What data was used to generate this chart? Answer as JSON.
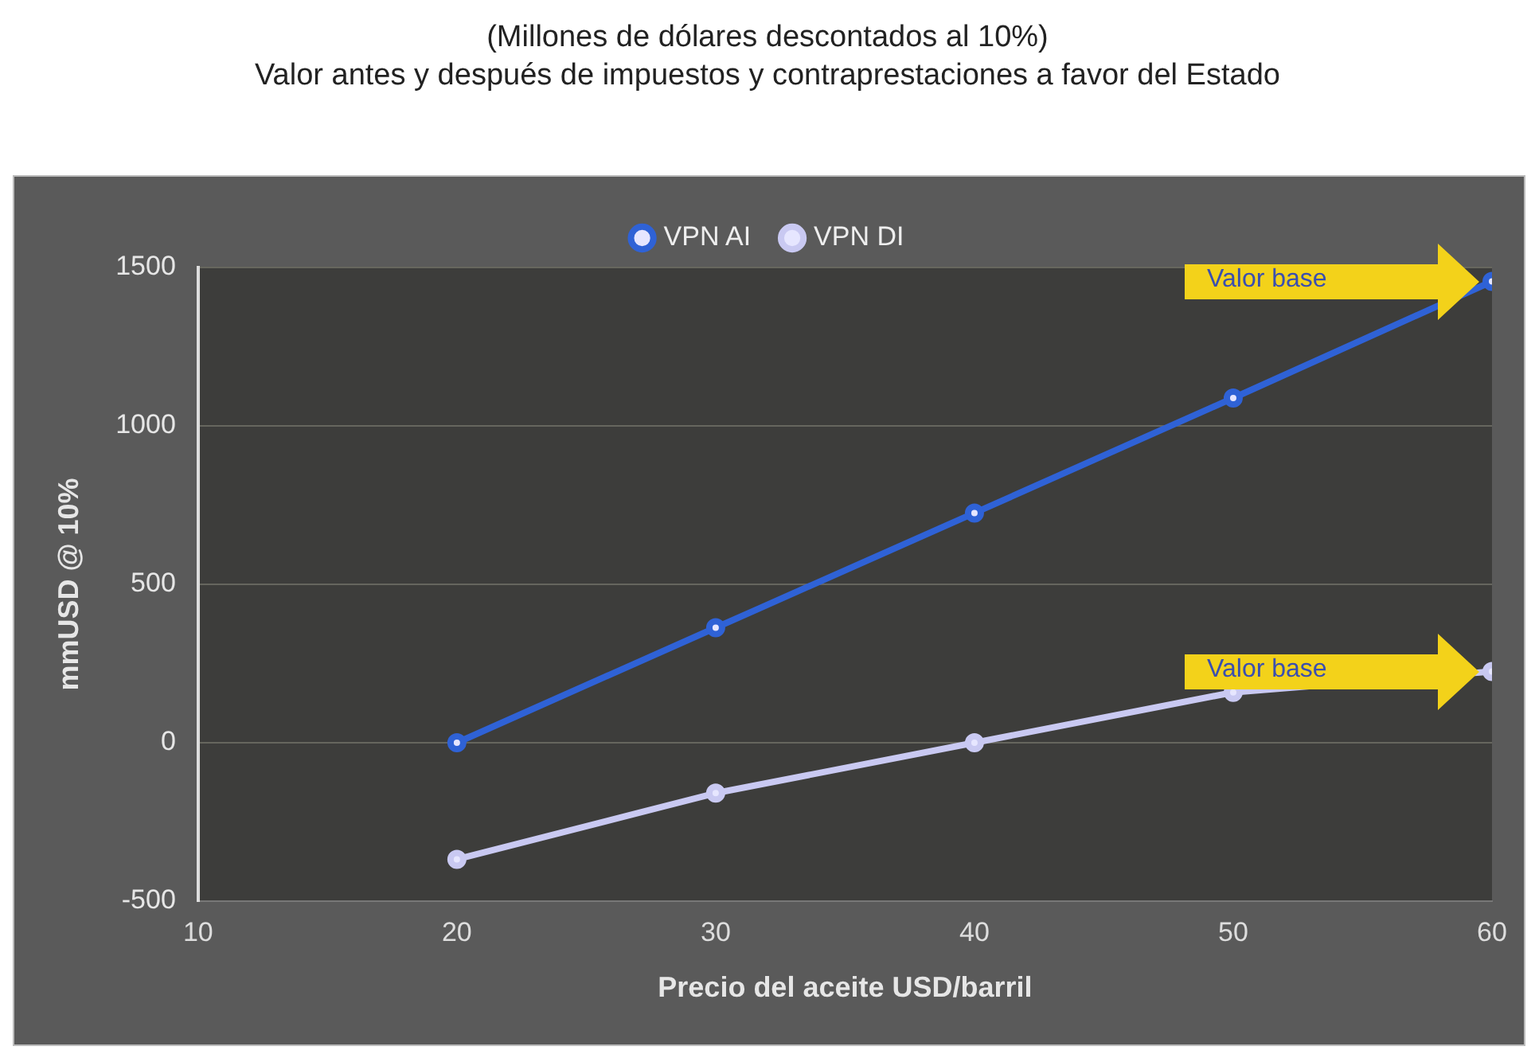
{
  "chart_data": {
    "type": "line",
    "title": "(Millones de dólares descontados al 10%)",
    "subtitle": "Valor antes y después de impuestos y contraprestaciones a favor del Estado",
    "xlabel": "Precio del aceite USD/barril",
    "ylabel": "mmUSD @ 10%",
    "x": [
      20,
      30,
      40,
      50,
      60
    ],
    "series": [
      {
        "name": "VPN AI",
        "color": "#2f62d6",
        "values": [
          0,
          363,
          725,
          1088,
          1456
        ]
      },
      {
        "name": "VPN DI",
        "color": "#c9c9f2",
        "values": [
          -368,
          -159,
          0,
          159,
          225
        ]
      }
    ],
    "xlim": [
      10,
      60
    ],
    "xticks": [
      10,
      20,
      30,
      40,
      50,
      60
    ],
    "ylim": [
      -500,
      1500
    ],
    "yticks": [
      -500,
      0,
      500,
      1000,
      1500
    ],
    "grid": "y",
    "legend": "top",
    "marker": "circle",
    "line_style": "solid",
    "annotations": [
      "Valor base",
      "Valor base"
    ]
  }
}
